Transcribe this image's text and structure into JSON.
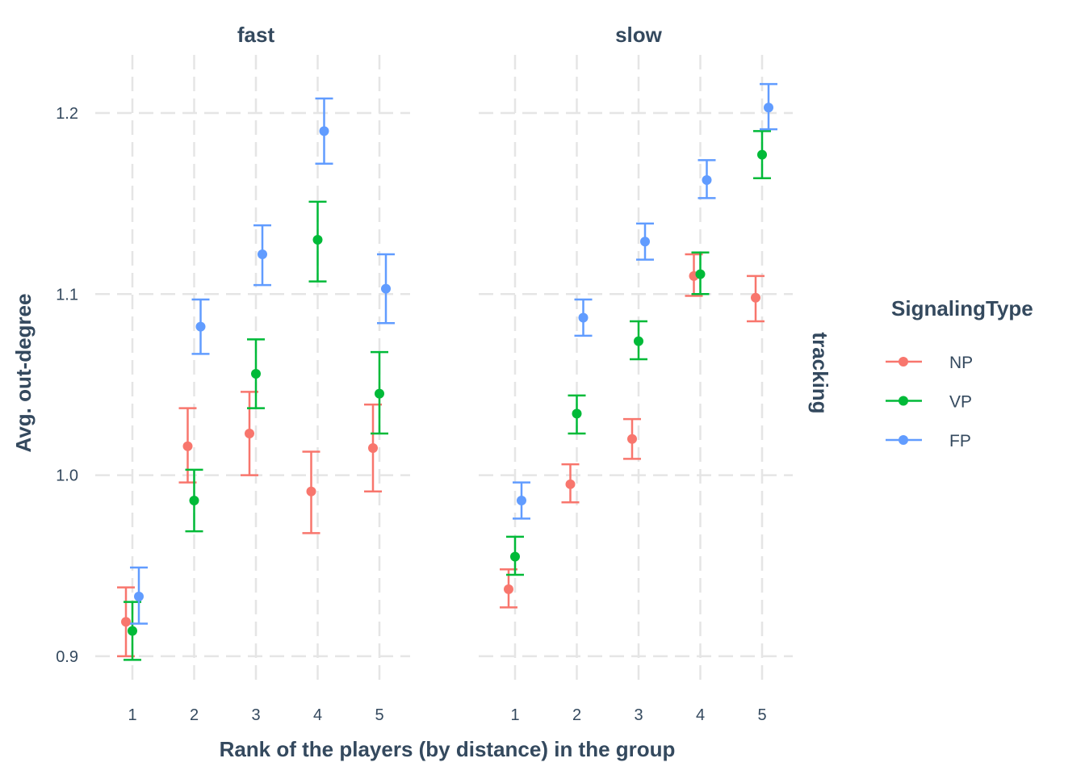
{
  "chart_data": {
    "type": "scatter",
    "subtype": "point-errorbar",
    "xlabel": "Rank of the players (by distance) in the group",
    "ylabel": "Avg. out-degree",
    "right_strip_label": "tracking",
    "ylim": [
      0.875,
      1.23
    ],
    "y_ticks": [
      0.9,
      1.0,
      1.1,
      1.2
    ],
    "y_tick_labels": [
      "0.9",
      "1.0",
      "1.1",
      "1.2"
    ],
    "x": [
      1,
      2,
      3,
      4,
      5
    ],
    "x_tick_labels": [
      "1",
      "2",
      "3",
      "4",
      "5"
    ],
    "grid": true,
    "legend": {
      "title": "SignalingType",
      "position": "right",
      "entries": [
        "NP",
        "VP",
        "FP"
      ]
    },
    "colors": {
      "NP": "#f8766d",
      "VP": "#00ba38",
      "FP": "#619cff"
    },
    "panels": [
      {
        "title": "fast",
        "series": [
          {
            "name": "NP",
            "values": [
              0.919,
              1.016,
              1.023,
              0.991,
              1.015
            ],
            "lower": [
              0.9,
              0.996,
              1.0,
              0.968,
              0.991
            ],
            "upper": [
              0.938,
              1.037,
              1.046,
              1.013,
              1.039
            ]
          },
          {
            "name": "VP",
            "values": [
              0.914,
              0.986,
              1.056,
              1.13,
              1.045
            ],
            "lower": [
              0.898,
              0.969,
              1.037,
              1.107,
              1.023
            ],
            "upper": [
              0.93,
              1.003,
              1.075,
              1.151,
              1.068
            ]
          },
          {
            "name": "FP",
            "values": [
              0.933,
              1.082,
              1.122,
              1.19,
              1.103
            ],
            "lower": [
              0.918,
              1.067,
              1.105,
              1.172,
              1.084
            ],
            "upper": [
              0.949,
              1.097,
              1.138,
              1.208,
              1.122
            ]
          }
        ]
      },
      {
        "title": "slow",
        "series": [
          {
            "name": "NP",
            "values": [
              0.937,
              0.995,
              1.02,
              1.11,
              1.098
            ],
            "lower": [
              0.927,
              0.985,
              1.009,
              1.099,
              1.085
            ],
            "upper": [
              0.948,
              1.006,
              1.031,
              1.122,
              1.11
            ]
          },
          {
            "name": "VP",
            "values": [
              0.955,
              1.034,
              1.074,
              1.111,
              1.177
            ],
            "lower": [
              0.945,
              1.023,
              1.064,
              1.1,
              1.164
            ],
            "upper": [
              0.966,
              1.044,
              1.085,
              1.123,
              1.19
            ]
          },
          {
            "name": "FP",
            "values": [
              0.986,
              1.087,
              1.129,
              1.163,
              1.203
            ],
            "lower": [
              0.976,
              1.077,
              1.119,
              1.153,
              1.191
            ],
            "upper": [
              0.996,
              1.097,
              1.139,
              1.174,
              1.216
            ]
          }
        ]
      }
    ]
  }
}
